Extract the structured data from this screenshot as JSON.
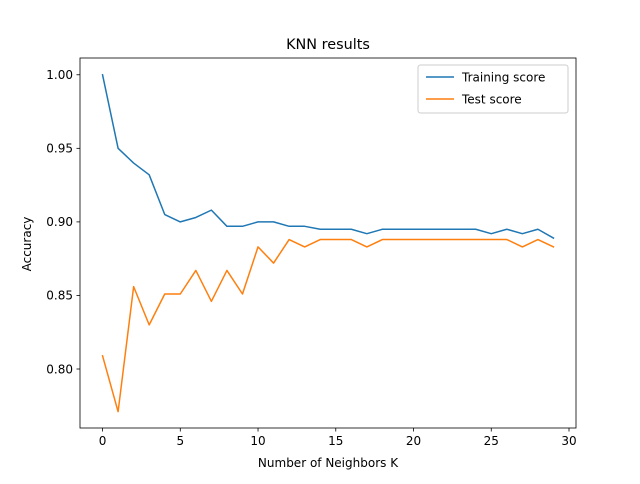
{
  "chart_data": {
    "type": "line",
    "title": "KNN results",
    "xlabel": "Number of Neighbors K",
    "ylabel": "Accuracy",
    "xlim": [
      -1.45,
      30.45
    ],
    "ylim": [
      0.7599,
      1.0114
    ],
    "x_ticks": [
      0,
      5,
      10,
      15,
      20,
      25,
      30
    ],
    "x_tick_labels": [
      "0",
      "5",
      "10",
      "15",
      "20",
      "25",
      "30"
    ],
    "y_ticks": [
      0.8,
      0.85,
      0.9,
      0.95,
      1.0
    ],
    "y_tick_labels": [
      "0.80",
      "0.85",
      "0.90",
      "0.95",
      "1.00"
    ],
    "grid": false,
    "legend_position": "upper right",
    "x": [
      0,
      1,
      2,
      3,
      4,
      5,
      6,
      7,
      8,
      9,
      10,
      11,
      12,
      13,
      14,
      15,
      16,
      17,
      18,
      19,
      20,
      21,
      22,
      23,
      24,
      25,
      26,
      27,
      28,
      29
    ],
    "series": [
      {
        "name": "Training score",
        "color": "#1f77b4",
        "values": [
          1.0,
          0.95,
          0.94,
          0.932,
          0.905,
          0.9,
          0.903,
          0.908,
          0.897,
          0.897,
          0.9,
          0.9,
          0.897,
          0.897,
          0.895,
          0.895,
          0.895,
          0.892,
          0.895,
          0.895,
          0.895,
          0.895,
          0.895,
          0.895,
          0.895,
          0.892,
          0.895,
          0.892,
          0.895,
          0.889
        ]
      },
      {
        "name": "Test score",
        "color": "#ff7f0e",
        "values": [
          0.809,
          0.771,
          0.856,
          0.83,
          0.851,
          0.851,
          0.867,
          0.846,
          0.867,
          0.851,
          0.883,
          0.872,
          0.888,
          0.883,
          0.888,
          0.888,
          0.888,
          0.883,
          0.888,
          0.888,
          0.888,
          0.888,
          0.888,
          0.888,
          0.888,
          0.888,
          0.888,
          0.883,
          0.888,
          0.883
        ]
      }
    ]
  }
}
